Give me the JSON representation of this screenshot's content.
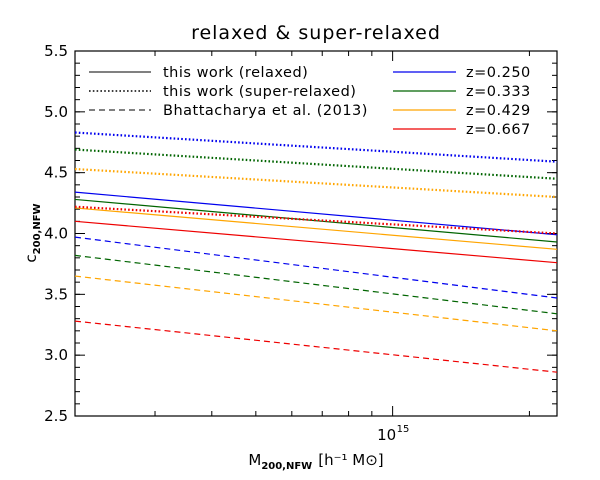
{
  "chart_data": {
    "type": "line",
    "title": "relaxed & super-relaxed",
    "xlabel": {
      "main": "M",
      "sub": "200,NFW",
      "units": "[h⁻¹ M⊙]"
    },
    "ylabel": {
      "main": "c",
      "sub": "200,NFW"
    },
    "xscale": "log",
    "xlim": [
      200000000000000.0,
      2300000000000000.0
    ],
    "ylim": [
      2.5,
      5.5
    ],
    "xticks": [
      {
        "value": 1000000000000000.0,
        "label": "10",
        "exp": "15"
      }
    ],
    "yticks": [
      "2.5",
      "3.0",
      "3.5",
      "4.0",
      "4.5",
      "5.0",
      "5.5"
    ],
    "legend": {
      "styles": [
        {
          "label": "this work (relaxed)",
          "dash": "solid"
        },
        {
          "label": "this work (super-relaxed)",
          "dash": "dotted"
        },
        {
          "label": "Bhattacharya et al. (2013)",
          "dash": "dashed"
        }
      ],
      "redshifts": [
        {
          "label": "z=0.250",
          "color": "#0000ee"
        },
        {
          "label": "z=0.333",
          "color": "#006400"
        },
        {
          "label": "z=0.429",
          "color": "#ffa500"
        },
        {
          "label": "z=0.667",
          "color": "#ee0000"
        }
      ]
    },
    "x": [
      200000000000000.0,
      2300000000000000.0
    ],
    "series": [
      {
        "name": "this work (relaxed) z=0.250",
        "style": "solid",
        "color": "#0000ee",
        "values": [
          4.34,
          3.99
        ]
      },
      {
        "name": "this work (relaxed) z=0.333",
        "style": "solid",
        "color": "#006400",
        "values": [
          4.28,
          3.93
        ]
      },
      {
        "name": "this work (relaxed) z=0.429",
        "style": "solid",
        "color": "#ffa500",
        "values": [
          4.21,
          3.87
        ]
      },
      {
        "name": "this work (relaxed) z=0.667",
        "style": "solid",
        "color": "#ee0000",
        "values": [
          4.1,
          3.76
        ]
      },
      {
        "name": "this work (super-relaxed) z=0.250",
        "style": "dotted",
        "color": "#0000ee",
        "values": [
          4.83,
          4.59
        ]
      },
      {
        "name": "this work (super-relaxed) z=0.333",
        "style": "dotted",
        "color": "#006400",
        "values": [
          4.69,
          4.45
        ]
      },
      {
        "name": "this work (super-relaxed) z=0.429",
        "style": "dotted",
        "color": "#ffa500",
        "values": [
          4.53,
          4.3
        ]
      },
      {
        "name": "this work (super-relaxed) z=0.667",
        "style": "dotted",
        "color": "#ee0000",
        "values": [
          4.22,
          4.0
        ]
      },
      {
        "name": "Bhattacharya et al. (2013) z=0.250",
        "style": "dashed",
        "color": "#0000ee",
        "values": [
          3.97,
          3.47
        ]
      },
      {
        "name": "Bhattacharya et al. (2013) z=0.333",
        "style": "dashed",
        "color": "#006400",
        "values": [
          3.82,
          3.34
        ]
      },
      {
        "name": "Bhattacharya et al. (2013) z=0.429",
        "style": "dashed",
        "color": "#ffa500",
        "values": [
          3.65,
          3.2
        ]
      },
      {
        "name": "Bhattacharya et al. (2013) z=0.667",
        "style": "dashed",
        "color": "#ee0000",
        "values": [
          3.28,
          2.86
        ]
      }
    ]
  }
}
